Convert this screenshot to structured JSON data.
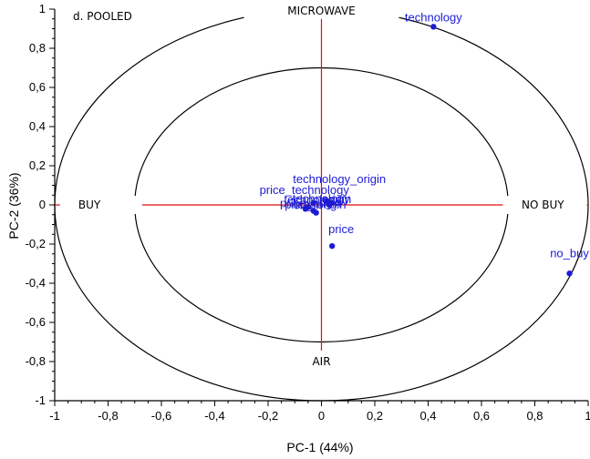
{
  "chart_data": {
    "type": "scatter",
    "panel_label": "d. POOLED",
    "xlabel": "PC-1 (44%)",
    "ylabel": "PC-2 (36%)",
    "xlim": [
      -1,
      1
    ],
    "ylim": [
      -1,
      1
    ],
    "x_ticks": [
      "-1",
      "-0,8",
      "-0,6",
      "-0,4",
      "-0,2",
      "0",
      "0,2",
      "0,4",
      "0,6",
      "0,8",
      "1"
    ],
    "y_ticks": [
      "1",
      "0,8",
      "0,6",
      "0,4",
      "0,2",
      "0",
      "-0,2",
      "-0,4",
      "-0,6",
      "-0,8",
      "-1"
    ],
    "region_labels": {
      "top": "MICROWAVE",
      "bottom": "AIR",
      "left": "BUY",
      "right": "NO BUY"
    },
    "reference_circles": [
      1.0,
      0.7
    ],
    "colors": {
      "points": "#1c1cd6",
      "crosshair": "#e01010",
      "circles": "#000000"
    },
    "points": [
      {
        "label": "technology",
        "x": 0.42,
        "y": 0.91
      },
      {
        "label": "no_buy",
        "x": 0.93,
        "y": -0.35
      },
      {
        "label": "price",
        "x": 0.04,
        "y": -0.21
      },
      {
        "label": "technology_origin",
        "x": 0.04,
        "y": 0.01
      },
      {
        "label": "price_technology",
        "x": -0.03,
        "y": 0.01
      },
      {
        "label": "technology",
        "x": 0.02,
        "y": 0.02
      },
      {
        "label": "technology",
        "x": -0.06,
        "y": -0.02
      },
      {
        "label": "origin",
        "x": -0.03,
        "y": -0.03
      },
      {
        "label": "price_origin",
        "x": -0.05,
        "y": -0.01
      },
      {
        "label": "price_origin",
        "x": -0.02,
        "y": -0.04
      },
      {
        "label": "origin",
        "x": 0.03,
        "y": 0.0
      }
    ]
  }
}
